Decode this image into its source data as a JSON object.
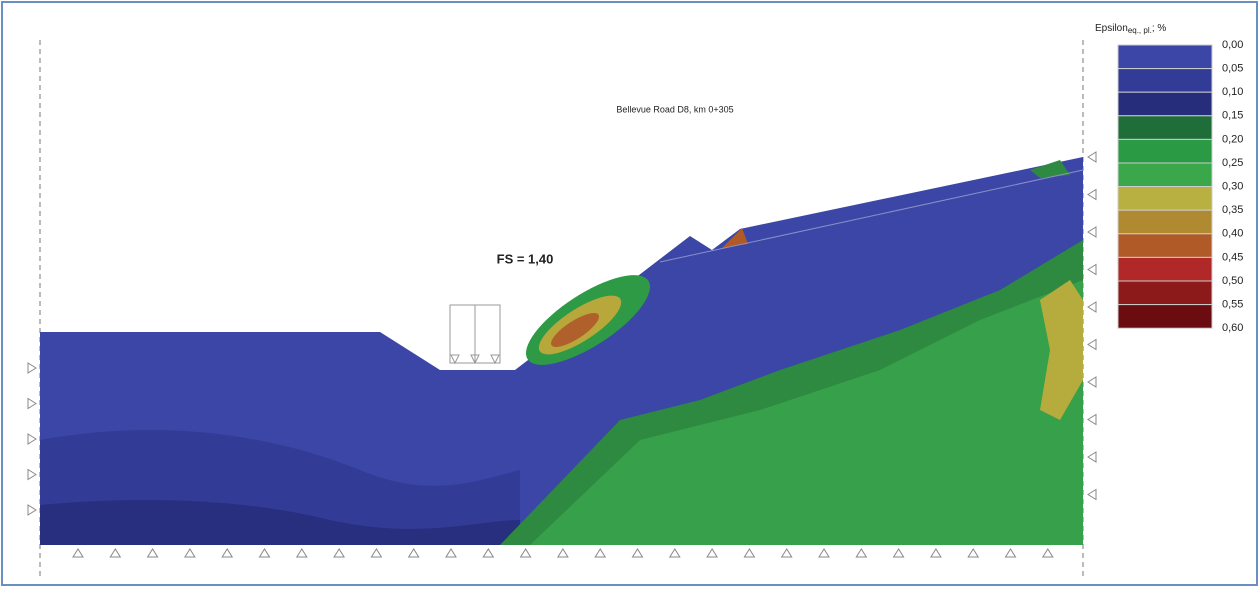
{
  "title": "Bellevue Road D8, km 0+305",
  "annotation": "FS = 1,40",
  "legend": {
    "title": "Epsilon",
    "subscript": "eq., pl.",
    "unit": "; %",
    "labels": [
      "0,00",
      "0,05",
      "0,10",
      "0,15",
      "0,20",
      "0,25",
      "0,30",
      "0,35",
      "0,40",
      "0,45",
      "0,50",
      "0,55",
      "0,60"
    ]
  }
}
